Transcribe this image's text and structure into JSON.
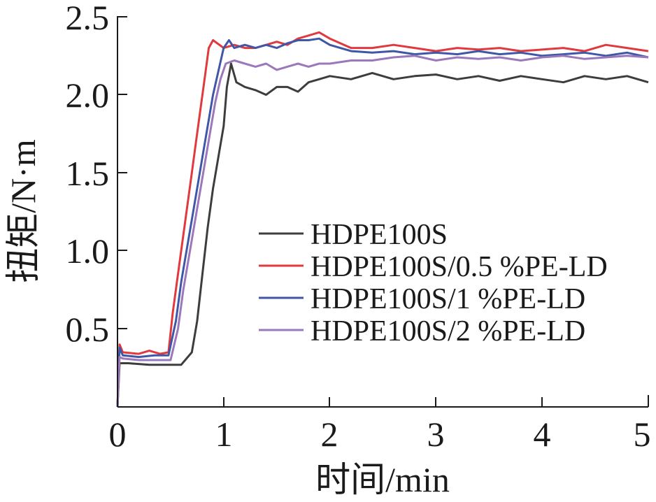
{
  "chart_data": {
    "type": "line",
    "xlabel": "时间/min",
    "ylabel": "扭矩/N·m",
    "xlim": [
      0,
      5
    ],
    "ylim": [
      0,
      2.5
    ],
    "x_ticks": [
      "0",
      "1",
      "2",
      "3",
      "4",
      "5"
    ],
    "y_ticks": [
      "0.5",
      "1.0",
      "1.5",
      "2.0",
      "2.5"
    ],
    "legend_position": "center-right",
    "grid": false,
    "series": [
      {
        "name": "HDPE100S",
        "color": "#3d3d3d",
        "points": [
          [
            0,
            0
          ],
          [
            0.02,
            0.28
          ],
          [
            0.1,
            0.28
          ],
          [
            0.3,
            0.27
          ],
          [
            0.45,
            0.27
          ],
          [
            0.6,
            0.27
          ],
          [
            0.7,
            0.35
          ],
          [
            0.75,
            0.55
          ],
          [
            0.8,
            0.85
          ],
          [
            0.85,
            1.15
          ],
          [
            0.9,
            1.4
          ],
          [
            0.95,
            1.6
          ],
          [
            1.0,
            1.8
          ],
          [
            1.03,
            2.05
          ],
          [
            1.07,
            2.2
          ],
          [
            1.12,
            2.08
          ],
          [
            1.2,
            2.05
          ],
          [
            1.3,
            2.03
          ],
          [
            1.4,
            2.0
          ],
          [
            1.5,
            2.05
          ],
          [
            1.6,
            2.05
          ],
          [
            1.7,
            2.02
          ],
          [
            1.8,
            2.08
          ],
          [
            1.9,
            2.1
          ],
          [
            2.0,
            2.12
          ],
          [
            2.2,
            2.1
          ],
          [
            2.4,
            2.14
          ],
          [
            2.6,
            2.1
          ],
          [
            2.8,
            2.12
          ],
          [
            3.0,
            2.13
          ],
          [
            3.2,
            2.1
          ],
          [
            3.4,
            2.12
          ],
          [
            3.6,
            2.09
          ],
          [
            3.8,
            2.12
          ],
          [
            4.0,
            2.1
          ],
          [
            4.2,
            2.08
          ],
          [
            4.4,
            2.12
          ],
          [
            4.6,
            2.1
          ],
          [
            4.8,
            2.12
          ],
          [
            5.0,
            2.08
          ]
        ]
      },
      {
        "name": "HDPE100S/0.5 %PE-LD",
        "color": "#e0393e",
        "points": [
          [
            0,
            0
          ],
          [
            0.02,
            0.4
          ],
          [
            0.05,
            0.35
          ],
          [
            0.2,
            0.34
          ],
          [
            0.3,
            0.36
          ],
          [
            0.4,
            0.34
          ],
          [
            0.48,
            0.35
          ],
          [
            0.52,
            0.6
          ],
          [
            0.58,
            0.9
          ],
          [
            0.62,
            1.1
          ],
          [
            0.66,
            1.3
          ],
          [
            0.7,
            1.5
          ],
          [
            0.74,
            1.7
          ],
          [
            0.78,
            1.9
          ],
          [
            0.82,
            2.1
          ],
          [
            0.86,
            2.3
          ],
          [
            0.9,
            2.35
          ],
          [
            1.0,
            2.3
          ],
          [
            1.1,
            2.32
          ],
          [
            1.2,
            2.3
          ],
          [
            1.3,
            2.3
          ],
          [
            1.4,
            2.32
          ],
          [
            1.5,
            2.34
          ],
          [
            1.6,
            2.32
          ],
          [
            1.7,
            2.36
          ],
          [
            1.8,
            2.38
          ],
          [
            1.9,
            2.4
          ],
          [
            2.0,
            2.36
          ],
          [
            2.2,
            2.3
          ],
          [
            2.4,
            2.3
          ],
          [
            2.6,
            2.32
          ],
          [
            2.8,
            2.3
          ],
          [
            3.0,
            2.28
          ],
          [
            3.2,
            2.3
          ],
          [
            3.4,
            2.29
          ],
          [
            3.6,
            2.3
          ],
          [
            3.8,
            2.28
          ],
          [
            4.0,
            2.29
          ],
          [
            4.2,
            2.3
          ],
          [
            4.4,
            2.28
          ],
          [
            4.6,
            2.32
          ],
          [
            4.8,
            2.3
          ],
          [
            5.0,
            2.28
          ]
        ]
      },
      {
        "name": "HDPE100S/1 %PE-LD",
        "color": "#3f57a6",
        "points": [
          [
            0,
            0
          ],
          [
            0.02,
            0.38
          ],
          [
            0.05,
            0.33
          ],
          [
            0.2,
            0.32
          ],
          [
            0.35,
            0.33
          ],
          [
            0.48,
            0.33
          ],
          [
            0.55,
            0.55
          ],
          [
            0.6,
            0.8
          ],
          [
            0.65,
            1.0
          ],
          [
            0.7,
            1.2
          ],
          [
            0.75,
            1.4
          ],
          [
            0.8,
            1.6
          ],
          [
            0.85,
            1.8
          ],
          [
            0.9,
            2.0
          ],
          [
            0.95,
            2.15
          ],
          [
            1.0,
            2.3
          ],
          [
            1.05,
            2.35
          ],
          [
            1.1,
            2.3
          ],
          [
            1.2,
            2.32
          ],
          [
            1.3,
            2.3
          ],
          [
            1.4,
            2.32
          ],
          [
            1.5,
            2.3
          ],
          [
            1.6,
            2.33
          ],
          [
            1.7,
            2.35
          ],
          [
            1.8,
            2.35
          ],
          [
            1.9,
            2.36
          ],
          [
            2.0,
            2.32
          ],
          [
            2.2,
            2.28
          ],
          [
            2.4,
            2.27
          ],
          [
            2.6,
            2.28
          ],
          [
            2.8,
            2.26
          ],
          [
            3.0,
            2.27
          ],
          [
            3.2,
            2.26
          ],
          [
            3.4,
            2.28
          ],
          [
            3.6,
            2.26
          ],
          [
            3.8,
            2.27
          ],
          [
            4.0,
            2.25
          ],
          [
            4.2,
            2.26
          ],
          [
            4.4,
            2.27
          ],
          [
            4.6,
            2.25
          ],
          [
            4.8,
            2.27
          ],
          [
            5.0,
            2.24
          ]
        ]
      },
      {
        "name": "HDPE100S/2 %PE-LD",
        "color": "#9a78bb",
        "points": [
          [
            0,
            0
          ],
          [
            0.02,
            0.32
          ],
          [
            0.05,
            0.31
          ],
          [
            0.2,
            0.3
          ],
          [
            0.35,
            0.3
          ],
          [
            0.5,
            0.3
          ],
          [
            0.57,
            0.5
          ],
          [
            0.62,
            0.75
          ],
          [
            0.67,
            0.95
          ],
          [
            0.72,
            1.15
          ],
          [
            0.77,
            1.35
          ],
          [
            0.82,
            1.55
          ],
          [
            0.87,
            1.75
          ],
          [
            0.92,
            1.95
          ],
          [
            0.97,
            2.1
          ],
          [
            1.02,
            2.2
          ],
          [
            1.1,
            2.22
          ],
          [
            1.2,
            2.2
          ],
          [
            1.3,
            2.18
          ],
          [
            1.4,
            2.2
          ],
          [
            1.5,
            2.16
          ],
          [
            1.6,
            2.18
          ],
          [
            1.7,
            2.2
          ],
          [
            1.8,
            2.18
          ],
          [
            1.9,
            2.2
          ],
          [
            2.0,
            2.2
          ],
          [
            2.2,
            2.22
          ],
          [
            2.4,
            2.22
          ],
          [
            2.6,
            2.24
          ],
          [
            2.8,
            2.25
          ],
          [
            3.0,
            2.22
          ],
          [
            3.2,
            2.24
          ],
          [
            3.4,
            2.23
          ],
          [
            3.6,
            2.24
          ],
          [
            3.8,
            2.22
          ],
          [
            4.0,
            2.24
          ],
          [
            4.2,
            2.25
          ],
          [
            4.4,
            2.23
          ],
          [
            4.6,
            2.24
          ],
          [
            4.8,
            2.25
          ],
          [
            5.0,
            2.24
          ]
        ]
      }
    ]
  }
}
